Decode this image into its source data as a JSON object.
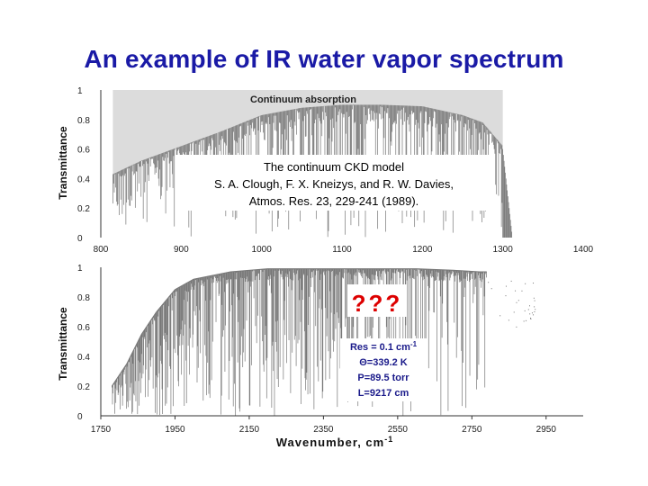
{
  "title": "An example of IR water vapor spectrum",
  "chart_data": [
    {
      "type": "line",
      "ylabel": "Transmittance",
      "xlim": [
        800,
        1400
      ],
      "ylim": [
        0,
        1
      ],
      "x_ticks": [
        "800",
        "900",
        "1000",
        "1100",
        "1200",
        "1300",
        "1400"
      ],
      "y_ticks": [
        "0",
        "0.2",
        "0.4",
        "0.6",
        "0.8",
        "1"
      ],
      "continuum_label": "Continuum absorption",
      "continuum_envelope": {
        "x": [
          815,
          850,
          900,
          950,
          1000,
          1050,
          1100,
          1150,
          1200,
          1250,
          1275,
          1300
        ],
        "y": [
          0.43,
          0.52,
          0.62,
          0.72,
          0.83,
          0.88,
          0.9,
          0.9,
          0.89,
          0.83,
          0.78,
          0.62
        ]
      },
      "reference_text": [
        "The continuum CKD model",
        "S. A. Clough, F. X. Kneizys, and R. W. Davies,",
        "Atmos. Res. 23, 229-241 (1989)."
      ]
    },
    {
      "type": "line",
      "ylabel": "Transmittance",
      "xlabel": "Wavenumber, cm",
      "xlabel_sup": "-1",
      "xlim": [
        1750,
        3050
      ],
      "ylim": [
        0,
        1
      ],
      "x_ticks": [
        "1750",
        "1950",
        "2150",
        "2350",
        "2550",
        "2750",
        "2950"
      ],
      "y_ticks": [
        "0",
        "0.2",
        "0.4",
        "0.6",
        "0.8",
        "1"
      ],
      "envelope": {
        "x": [
          1780,
          1820,
          1860,
          1900,
          1950,
          2000,
          2100,
          2200,
          2300,
          2400,
          2500,
          2600,
          2700,
          2770,
          2790
        ],
        "y": [
          0.2,
          0.35,
          0.55,
          0.7,
          0.85,
          0.92,
          0.97,
          0.99,
          0.99,
          0.99,
          0.99,
          0.99,
          0.98,
          0.97,
          0.97
        ]
      },
      "annotation": "???",
      "params": {
        "res": "Res = 0.1 cm",
        "res_sup": "-1",
        "theta": "Θ=339.2 K",
        "pressure": "P=89.5 torr",
        "length": "L=9217 cm"
      }
    }
  ]
}
